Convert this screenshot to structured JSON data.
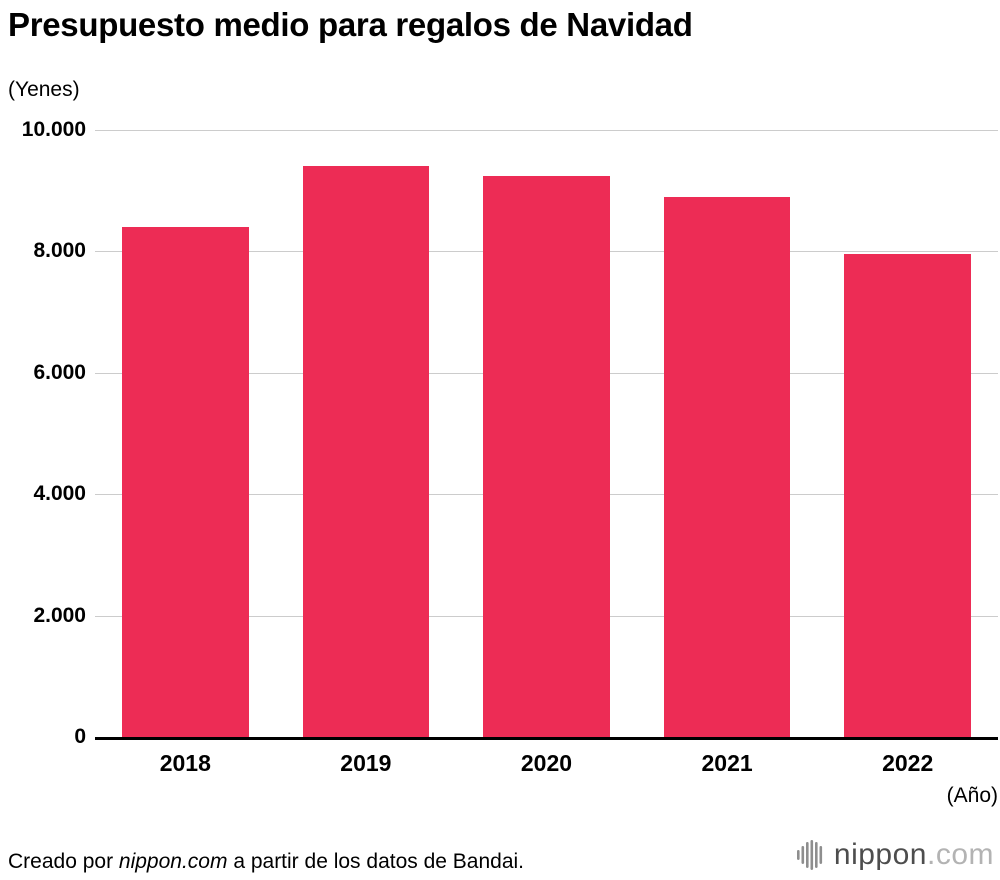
{
  "title": "Presupuesto medio para regalos de Navidad",
  "y_unit_label": "(Yenes)",
  "x_unit_label": "(Año)",
  "footer": {
    "prefix": "Creado por ",
    "brand": "nippon.com",
    "suffix": " a partir de los datos de Bandai."
  },
  "logo": {
    "name": "nippon",
    "tld": ".com"
  },
  "colors": {
    "bar": "#ED2C55",
    "grid": "#cccccc",
    "axis": "#000000"
  },
  "chart_data": {
    "type": "bar",
    "title": "Presupuesto medio para regalos de Navidad",
    "categories": [
      "2018",
      "2019",
      "2020",
      "2021",
      "2022"
    ],
    "values": [
      8400,
      9400,
      9250,
      8900,
      7950
    ],
    "xlabel": "(Año)",
    "ylabel": "(Yenes)",
    "ylim": [
      0,
      10000
    ],
    "ytick_interval": 2000,
    "ytick_labels": [
      "0",
      "2.000",
      "4.000",
      "6.000",
      "8.000",
      "10.000"
    ],
    "grid": true,
    "legend": false
  }
}
